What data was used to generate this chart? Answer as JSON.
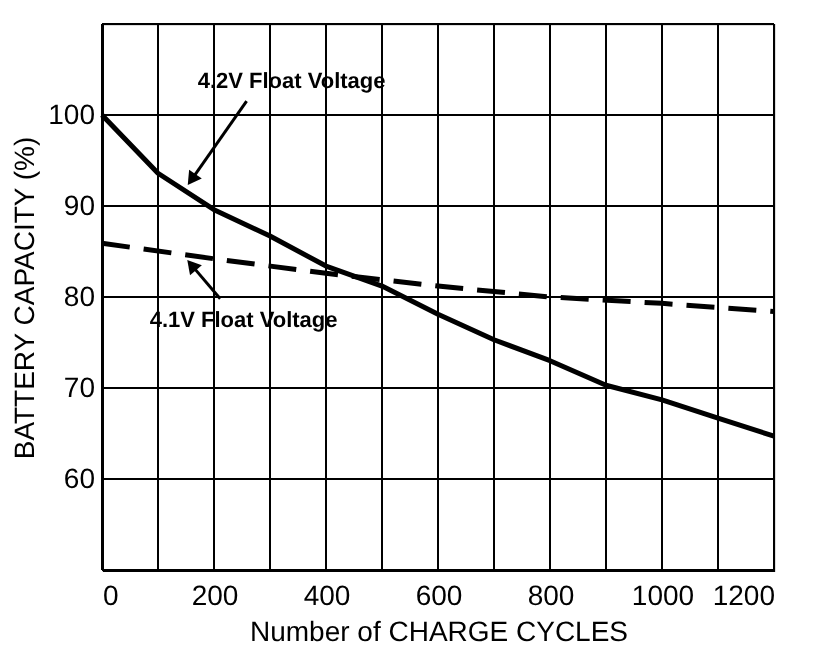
{
  "chart_data": {
    "type": "line",
    "xlabel": "Number of CHARGE CYCLES",
    "ylabel": "BATTERY CAPACITY  (%)",
    "xlim": [
      0,
      1200
    ],
    "ylim": [
      50,
      110
    ],
    "xticks": [
      0,
      {
        "value": 100,
        "label": null
      },
      200,
      {
        "value": 300,
        "label": null
      },
      400,
      {
        "value": 500,
        "label": null
      },
      600,
      {
        "value": 700,
        "label": null
      },
      800,
      {
        "value": 900,
        "label": null
      },
      1000,
      {
        "value": 1100,
        "label": null
      },
      1200
    ],
    "yticks": [
      {
        "value": 50,
        "label": null
      },
      60,
      70,
      80,
      90,
      100,
      {
        "value": 110,
        "label": null
      }
    ],
    "grid": true,
    "marker": "none",
    "series": [
      {
        "color": "#000000",
        "line_style": "solid",
        "x": [
          0,
          100,
          200,
          300,
          400,
          500,
          600,
          700,
          800,
          900,
          1000,
          1100,
          1200
        ],
        "values": [
          100,
          93.6,
          89.6,
          86.7,
          83.4,
          81.2,
          78.1,
          75.3,
          73.0,
          70.3,
          68.7,
          66.7,
          64.7
        ]
      },
      {
        "color": "#000000",
        "line_style": "dashed",
        "x": [
          0,
          200,
          400,
          600,
          800,
          1000,
          1200
        ],
        "values": [
          85.9,
          84.2,
          82.6,
          81.2,
          80.0,
          79.3,
          78.4
        ]
      }
    ],
    "annotations": [
      {
        "text": "4.2V Float Voltage",
        "x": 160,
        "y": 92.9
      },
      {
        "text": "4.1V Float Voltage",
        "x": 160,
        "y": 83.5
      }
    ]
  }
}
